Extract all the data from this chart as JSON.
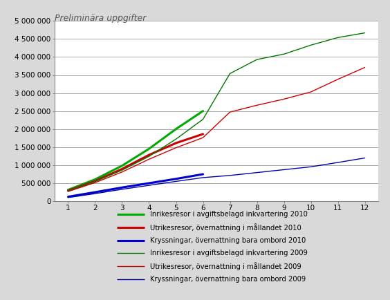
{
  "title_annotation": "Preliminära uppgifter",
  "background_color": "#d9d9d9",
  "plot_bg_color": "#ffffff",
  "series": [
    {
      "label": "Inrikesresor i avgiftsbelagd inkvartering 2010",
      "color": "#00aa00",
      "linewidth": 2.2,
      "linestyle": "solid",
      "x": [
        1,
        2,
        3,
        4,
        5,
        6
      ],
      "y": [
        310000,
        600000,
        980000,
        1450000,
        2000000,
        2500000
      ]
    },
    {
      "label": "Utrikesresor, övernattning i mållandet 2010",
      "color": "#cc0000",
      "linewidth": 2.2,
      "linestyle": "solid",
      "x": [
        1,
        2,
        3,
        4,
        5,
        6
      ],
      "y": [
        285000,
        555000,
        890000,
        1280000,
        1610000,
        1860000
      ]
    },
    {
      "label": "Kryssningar, övernattning bara ombord 2010",
      "color": "#0000cc",
      "linewidth": 2.2,
      "linestyle": "solid",
      "x": [
        1,
        2,
        3,
        4,
        5,
        6
      ],
      "y": [
        118000,
        245000,
        375000,
        495000,
        615000,
        745000
      ]
    },
    {
      "label": "Inrikesresor i avgiftsbelagd inkvartering 2009",
      "color": "#007700",
      "linewidth": 1.0,
      "linestyle": "solid",
      "x": [
        1,
        2,
        3,
        4,
        5,
        6,
        7,
        8,
        9,
        10,
        11,
        12
      ],
      "y": [
        285000,
        545000,
        855000,
        1240000,
        1720000,
        2270000,
        3540000,
        3930000,
        4080000,
        4330000,
        4540000,
        4670000
      ]
    },
    {
      "label": "Utrikesresor, övernattning i mållandet 2009",
      "color": "#cc0000",
      "linewidth": 1.0,
      "linestyle": "solid",
      "x": [
        1,
        2,
        3,
        4,
        5,
        6,
        7,
        8,
        9,
        10,
        11,
        12
      ],
      "y": [
        265000,
        510000,
        805000,
        1160000,
        1480000,
        1760000,
        2470000,
        2660000,
        2830000,
        3030000,
        3380000,
        3710000
      ]
    },
    {
      "label": "Kryssningar, övernattning bara ombord 2009",
      "color": "#0000aa",
      "linewidth": 1.0,
      "linestyle": "solid",
      "x": [
        1,
        2,
        3,
        4,
        5,
        6,
        7,
        8,
        9,
        10,
        11,
        12
      ],
      "y": [
        95000,
        205000,
        325000,
        435000,
        545000,
        650000,
        710000,
        790000,
        870000,
        950000,
        1070000,
        1195000
      ]
    }
  ],
  "xlim": [
    0.5,
    12.5
  ],
  "ylim": [
    0,
    5000000
  ],
  "yticks": [
    0,
    500000,
    1000000,
    1500000,
    2000000,
    2500000,
    3000000,
    3500000,
    4000000,
    4500000,
    5000000
  ],
  "ytick_labels": [
    "0",
    "500 000",
    "1 000 000",
    "1 500 000",
    "2 000 000",
    "2 500 000",
    "3 000 000",
    "3 500 000",
    "4 000 000",
    "4 500 000",
    "5 000 000"
  ],
  "xticks": [
    1,
    2,
    3,
    4,
    5,
    6,
    7,
    8,
    9,
    10,
    11,
    12
  ],
  "grid_color": "#aaaaaa",
  "legend_fontsize": 7.2,
  "title_fontsize": 9,
  "tick_labelsize": 7.5
}
